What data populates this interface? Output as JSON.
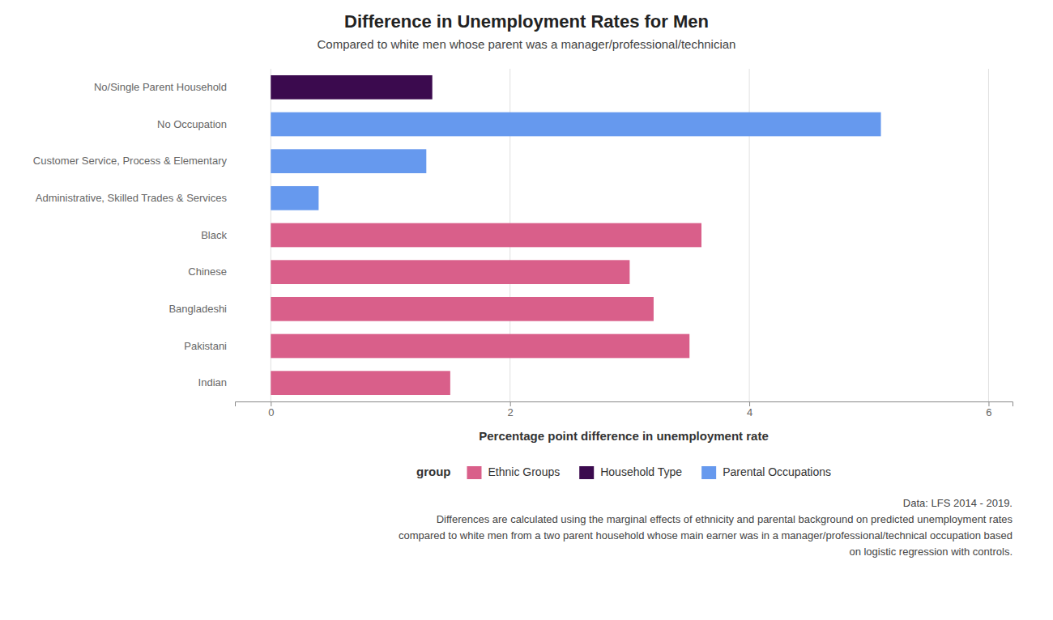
{
  "chart_data": {
    "type": "bar",
    "orientation": "horizontal",
    "title": "Difference in Unemployment Rates for Men",
    "subtitle": "Compared to white men whose parent was a manager/professional/technician",
    "xlabel": "Percentage point difference in unemployment rate",
    "categories": [
      "No/Single Parent Household",
      "No Occupation",
      "Customer Service, Process & Elementary",
      "Administrative, Skilled Trades & Services",
      "Black",
      "Chinese",
      "Bangladeshi",
      "Pakistani",
      "Indian"
    ],
    "values": [
      1.35,
      5.1,
      1.3,
      0.4,
      3.6,
      3.0,
      3.2,
      3.5,
      1.5
    ],
    "colors": [
      "#3b0a4e",
      "#6699ee",
      "#6699ee",
      "#6699ee",
      "#d95f8a",
      "#d95f8a",
      "#d95f8a",
      "#d95f8a",
      "#d95f8a"
    ],
    "xlim": [
      -0.3,
      6.2
    ],
    "xticks": [
      0,
      2,
      4,
      6
    ],
    "grid": true,
    "legend": "bottom",
    "legend_title": "group",
    "legend_items": [
      {
        "name": "Ethnic Groups",
        "color": "#d95f8a"
      },
      {
        "name": "Household Type",
        "color": "#3b0a4e"
      },
      {
        "name": "Parental Occupations",
        "color": "#6699ee"
      }
    ],
    "footnotes": [
      "Data: LFS 2014 - 2019.",
      "Differences are calculated using the marginal effects of ethnicity and parental background on predicted  unemployment rates",
      "compared to white men from a two parent household whose main earner was in a manager/professional/technical occupation based",
      "on logistic regression with controls."
    ]
  }
}
